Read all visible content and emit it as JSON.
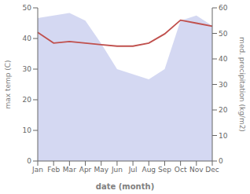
{
  "chart_data": {
    "type": "line",
    "xlabel": "date (month)",
    "ylabel": "max temp (C)",
    "y2label": "med. precipitation (kg/m2)",
    "categories": [
      "Jan",
      "Feb",
      "Mar",
      "Apr",
      "May",
      "Jun",
      "Jul",
      "Aug",
      "Sep",
      "Oct",
      "Nov",
      "Dec"
    ],
    "series": [
      {
        "type": "area",
        "color": "#b0b8e8",
        "axis": "y2",
        "values": [
          56,
          57,
          58,
          55,
          46,
          36,
          34,
          32,
          36,
          55,
          57,
          53
        ]
      },
      {
        "type": "line",
        "color": "#c0504d",
        "values": [
          42,
          38.5,
          39,
          38.5,
          38,
          37.5,
          37.5,
          38.5,
          41.5,
          46,
          45,
          44
        ]
      }
    ],
    "ylim": [
      0,
      50
    ],
    "yticks": [
      0,
      10,
      20,
      30,
      40,
      50
    ],
    "y2lim": [
      0,
      60
    ],
    "y2ticks": [
      0,
      10,
      20,
      30,
      40,
      50,
      60
    ],
    "grid": false
  }
}
